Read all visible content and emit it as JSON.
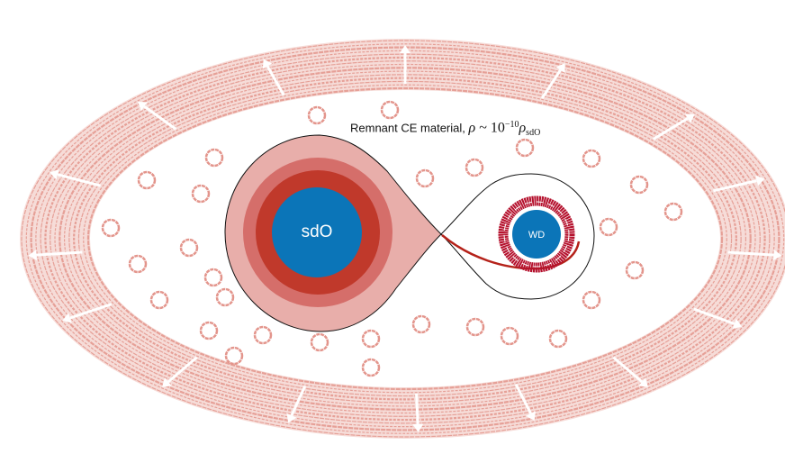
{
  "annotation": {
    "prefix": "Remnant CE material, ",
    "rho": "ρ",
    "sim": " ~ ",
    "base": "10",
    "exponent": "−10",
    "rho2": "ρ",
    "subscript": "sdO"
  },
  "stars": {
    "primary": "sdO",
    "companion": "WD"
  },
  "colors": {
    "star_blue": "#0b75b8",
    "envelope_light": "#e8aaa4",
    "envelope_mid": "#d4716a",
    "envelope_dark": "#c0392b",
    "accretion_disk": "#b5122e",
    "remnant_material": "#e3958c",
    "arrows": "#ffffff"
  }
}
